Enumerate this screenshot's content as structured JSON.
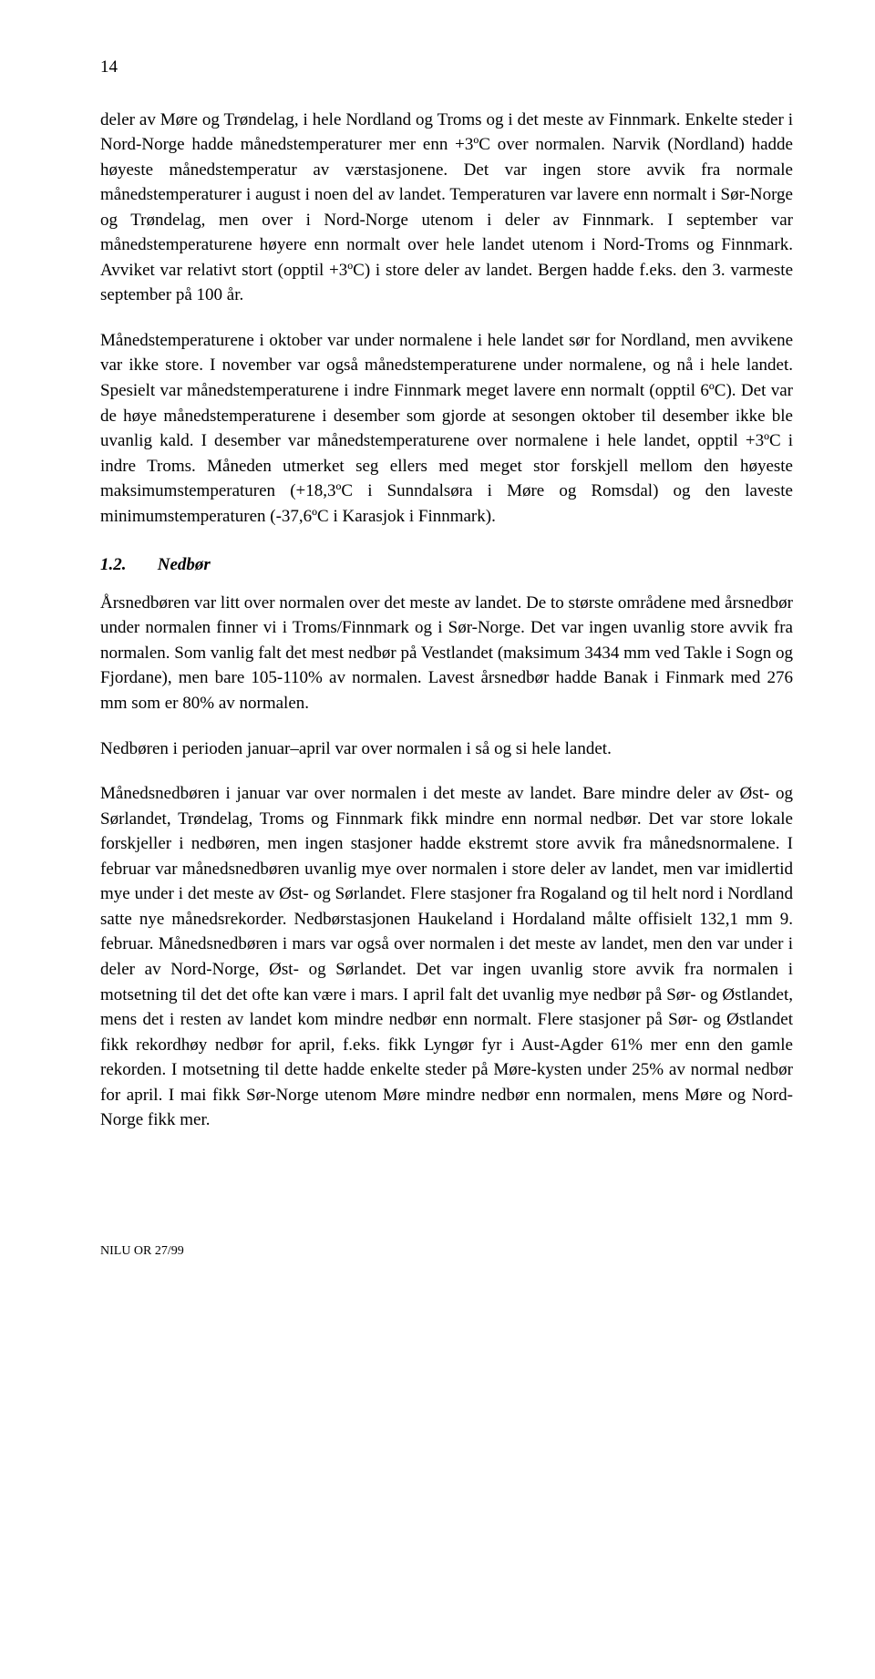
{
  "page_number": "14",
  "paragraphs": {
    "p1": "deler av Møre og Trøndelag, i hele Nordland og Troms og i det meste av Finnmark. Enkelte steder i Nord-Norge hadde månedstemperaturer mer enn +3ºC over normalen. Narvik (Nordland) hadde høyeste månedstemperatur av værstasjonene. Det var ingen store avvik fra normale månedstemperaturer i august i noen del av landet. Temperaturen var lavere enn normalt i Sør-Norge og Trøndelag, men over i Nord-Norge utenom i deler av Finnmark. I september var månedstemperaturene høyere enn normalt over hele landet utenom i Nord-Troms og Finnmark. Avviket var relativt stort (opptil +3ºC) i store deler av landet. Bergen hadde f.eks. den 3. varmeste september på 100 år.",
    "p2": "Månedstemperaturene i oktober var under normalene i hele landet sør for Nordland, men avvikene var ikke store. I november var også månedstemperaturene under normalene, og nå i hele landet. Spesielt var månedstemperaturene i indre Finnmark meget lavere enn normalt (opptil 6ºC). Det var de høye månedstemperaturene i desember som gjorde at sesongen oktober til desember ikke ble uvanlig kald. I desember var månedstemperaturene over normalene i hele landet, opptil +3ºC i indre Troms. Måneden utmerket seg ellers med meget stor forskjell mellom den høyeste maksimumstemperaturen (+18,3ºC i Sunndalsøra i Møre og Romsdal) og den laveste minimumstemperaturen (-37,6ºC i Karasjok i Finnmark).",
    "p3": "Årsnedbøren var litt over normalen over det meste av landet. De to største områdene med årsnedbør under normalen finner vi i Troms/Finnmark og i Sør-Norge. Det var ingen uvanlig store avvik fra normalen. Som vanlig falt det mest nedbør på Vestlandet (maksimum 3434 mm ved Takle i Sogn og Fjordane), men bare 105-110% av normalen. Lavest årsnedbør hadde Banak i Finmark med 276 mm som er 80% av normalen.",
    "p4": "Nedbøren i perioden januar–april var over normalen i så og si hele landet.",
    "p5": "Månedsnedbøren i januar var over normalen i det meste av landet. Bare mindre deler av Øst- og Sørlandet, Trøndelag, Troms og Finnmark fikk mindre enn normal nedbør. Det var store lokale forskjeller i nedbøren, men ingen stasjoner hadde ekstremt store avvik fra månedsnormalene. I februar var månedsnedbøren uvanlig mye over normalen i store deler av landet, men var imidlertid mye under i det meste av Øst- og Sørlandet. Flere stasjoner fra Rogaland og til helt nord i Nordland satte nye månedsrekorder. Nedbørstasjonen Haukeland i Hordaland målte offisielt 132,1 mm 9. februar. Månedsnedbøren i mars var også over normalen i det meste av landet, men den var under i deler av Nord-Norge, Øst- og Sørlandet. Det var ingen uvanlig store avvik fra normalen i motsetning til det det ofte kan være i mars. I april falt det uvanlig mye nedbør på Sør- og Østlandet, mens det i resten av landet kom mindre nedbør enn normalt. Flere stasjoner på Sør- og Østlandet fikk rekordhøy nedbør for april, f.eks. fikk Lyngør fyr i Aust-Agder 61% mer enn den gamle rekorden. I motsetning til dette hadde enkelte steder på Møre-kysten under 25% av normal nedbør for april. I mai fikk Sør-Norge utenom Møre mindre nedbør enn normalen, mens Møre og Nord-Norge fikk mer."
  },
  "section": {
    "number": "1.2.",
    "title": "Nedbør"
  },
  "footer": "NILU OR 27/99"
}
